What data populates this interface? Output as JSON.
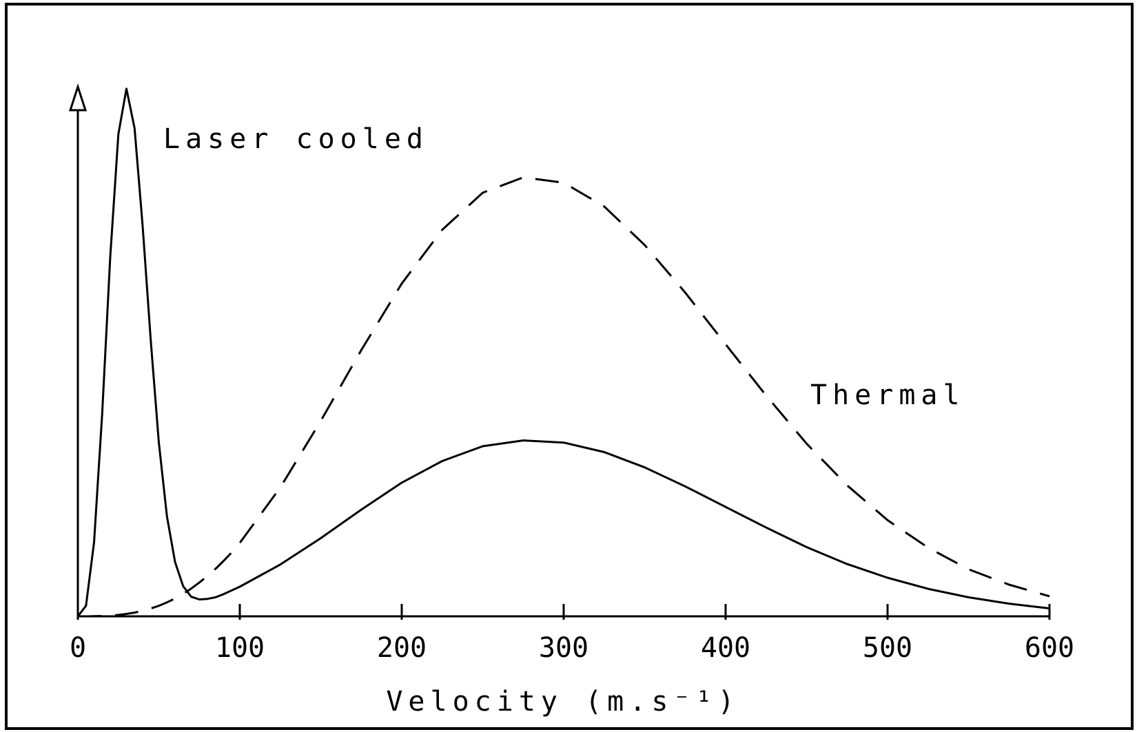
{
  "chart_data": {
    "type": "line",
    "x_label": "Velocity (m.s⁻¹)",
    "x": [
      0,
      5,
      10,
      15,
      20,
      25,
      30,
      35,
      40,
      45,
      50,
      55,
      60,
      65,
      70,
      75,
      80,
      85,
      90,
      95,
      100,
      125,
      150,
      175,
      200,
      225,
      250,
      275,
      300,
      325,
      350,
      375,
      400,
      425,
      450,
      475,
      500,
      525,
      550,
      575,
      600
    ],
    "series": [
      {
        "name": "Laser cooled",
        "color": "#000000",
        "line_style": "solid",
        "values": [
          0,
          2.0,
          14.0,
          38.4,
          68.1,
          91.3,
          99.9,
          92.4,
          73.9,
          52.2,
          32.9,
          18.9,
          10.3,
          5.7,
          3.7,
          3.2,
          3.3,
          3.6,
          4.2,
          4.9,
          5.6,
          9.8,
          14.8,
          20.2,
          25.3,
          29.4,
          32.2,
          33.3,
          32.9,
          31.1,
          28.2,
          24.6,
          20.7,
          16.8,
          13.1,
          9.9,
          7.3,
          5.2,
          3.6,
          2.4,
          1.5
        ]
      },
      {
        "name": "Thermal",
        "color": "#000000",
        "line_style": "dashed",
        "values": [
          0,
          0,
          0.02,
          0.06,
          0.13,
          0.26,
          0.45,
          0.7,
          1.04,
          1.47,
          2.0,
          2.64,
          3.39,
          4.26,
          5.25,
          6.4,
          7.61,
          9.0,
          10.5,
          12.1,
          13.9,
          24.4,
          37.0,
          50.4,
          63.0,
          73.2,
          80.2,
          83.1,
          82.1,
          77.6,
          70.3,
          61.3,
          51.5,
          41.8,
          32.7,
          24.8,
          18.2,
          13.0,
          8.9,
          6.0,
          3.8
        ]
      }
    ],
    "xlim": [
      0,
      600
    ],
    "xticks": [
      0,
      100,
      200,
      300,
      400,
      500,
      600
    ],
    "ylim": [
      0,
      100
    ],
    "grid": false
  }
}
